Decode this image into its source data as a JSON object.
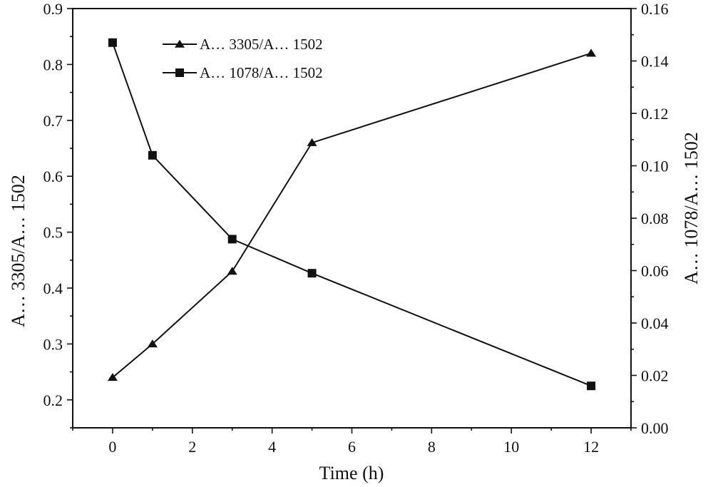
{
  "chart_data": {
    "type": "line",
    "title": "",
    "xlabel": "Time (h)",
    "ylabel_left": "A… 3305/A… 1502",
    "ylabel_right": "A… 1078/A… 1502",
    "x": [
      0,
      1,
      3,
      5,
      12
    ],
    "xlim": [
      -1,
      13
    ],
    "xticks": [
      0,
      2,
      4,
      6,
      8,
      10,
      12
    ],
    "ylim_left": [
      0.15,
      0.9
    ],
    "yticks_left": [
      0.2,
      0.3,
      0.4,
      0.5,
      0.6,
      0.7,
      0.8,
      0.9
    ],
    "ylim_right": [
      0.0,
      0.16
    ],
    "yticks_right": [
      0.0,
      0.02,
      0.04,
      0.06,
      0.08,
      0.1,
      0.12,
      0.14,
      0.16
    ],
    "grid": false,
    "legend_position": "top-left",
    "series": [
      {
        "name": "A… 3305/A… 1502",
        "axis": "left",
        "marker": "triangle",
        "values": [
          0.24,
          0.3,
          0.43,
          0.66,
          0.82
        ]
      },
      {
        "name": "A… 1078/A… 1502",
        "axis": "right",
        "marker": "square",
        "values": [
          0.147,
          0.104,
          0.072,
          0.059,
          0.016
        ]
      }
    ]
  }
}
